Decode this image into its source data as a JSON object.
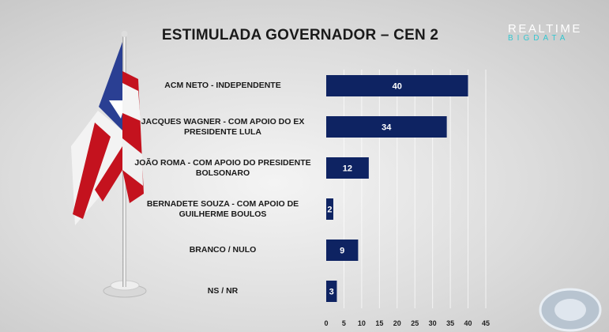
{
  "title": "ESTIMULADA GOVERNADOR – CEN 2",
  "logo": {
    "line1": "REALTIME",
    "line2": "BIGDATA"
  },
  "colors": {
    "bar": "#0e2362",
    "bar_text": "#ffffff",
    "logo_accent": "#35c7d0"
  },
  "chart_data": {
    "type": "bar",
    "orientation": "horizontal",
    "title": "ESTIMULADA GOVERNADOR – CEN 2",
    "categories": [
      "ACM NETO - INDEPENDENTE",
      "JACQUES WAGNER - COM APOIO DO EX PRESIDENTE LULA",
      "JOÃO ROMA - COM APOIO DO PRESIDENTE BOLSONARO",
      "BERNADETE SOUZA - COM APOIO DE GUILHERME BOULOS",
      "BRANCO / NULO",
      "NS / NR"
    ],
    "values": [
      40,
      34,
      12,
      2,
      9,
      3
    ],
    "value_labels": [
      "40",
      "34",
      "12",
      "2",
      "9",
      "3"
    ],
    "xlim": [
      0,
      45
    ],
    "xticks": [
      "0",
      "5",
      "10",
      "15",
      "20",
      "25",
      "30",
      "35",
      "40",
      "45"
    ],
    "xlabel": "",
    "ylabel": "",
    "grid": "vertical"
  }
}
